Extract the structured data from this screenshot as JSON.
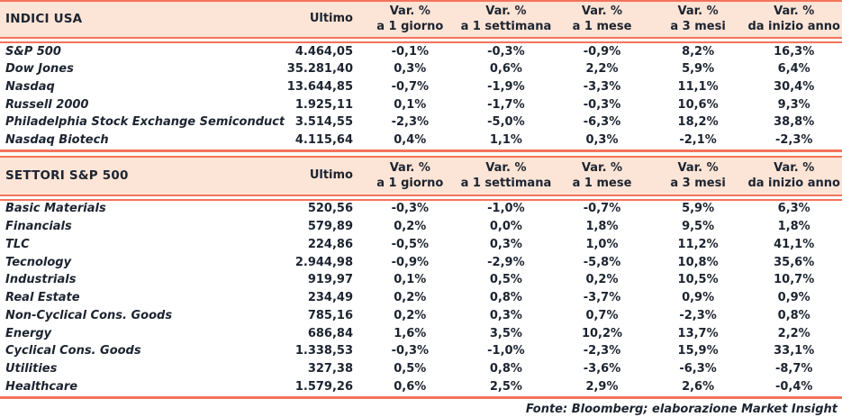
{
  "colors": {
    "header_bg": "#FCE4D6",
    "accent_line": "#F4735C",
    "text": "#1C2430"
  },
  "header": {
    "ultimo": "Ultimo",
    "var_label": "Var. %",
    "periods": [
      "a 1 giorno",
      "a 1 settimana",
      "a 1 mese",
      "a 3 mesi",
      "da inizio anno"
    ]
  },
  "chart_data": [
    {
      "type": "table",
      "title": "INDICI USA",
      "columns": [
        "INDICI USA",
        "Ultimo",
        "Var. % a 1 giorno",
        "Var. % a 1 settimana",
        "Var. % a 1 mese",
        "Var. % a 3 mesi",
        "Var. % da inizio anno"
      ],
      "rows": [
        {
          "label": "S&P 500",
          "ultimo": "4.464,05",
          "vars": [
            "-0,1%",
            "-0,3%",
            "-0,9%",
            "8,2%",
            "16,3%"
          ]
        },
        {
          "label": "Dow Jones",
          "ultimo": "35.281,40",
          "vars": [
            "0,3%",
            "0,6%",
            "2,2%",
            "5,9%",
            "6,4%"
          ]
        },
        {
          "label": "Nasdaq",
          "ultimo": "13.644,85",
          "vars": [
            "-0,7%",
            "-1,9%",
            "-3,3%",
            "11,1%",
            "30,4%"
          ]
        },
        {
          "label": "Russell 2000",
          "ultimo": "1.925,11",
          "vars": [
            "0,1%",
            "-1,7%",
            "-0,3%",
            "10,6%",
            "9,3%"
          ]
        },
        {
          "label": "Philadelphia Stock Exchange Semiconductor",
          "ultimo": "3.514,55",
          "vars": [
            "-2,3%",
            "-5,0%",
            "-6,3%",
            "18,2%",
            "38,8%"
          ]
        },
        {
          "label": "Nasdaq Biotech",
          "ultimo": "4.115,64",
          "vars": [
            "0,4%",
            "1,1%",
            "0,3%",
            "-2,1%",
            "-2,3%"
          ]
        }
      ]
    },
    {
      "type": "table",
      "title": "SETTORI S&P 500",
      "columns": [
        "SETTORI S&P 500",
        "Ultimo",
        "Var. % a 1 giorno",
        "Var. % a 1 settimana",
        "Var. % a 1 mese",
        "Var. % a 3 mesi",
        "Var. % da inizio anno"
      ],
      "rows": [
        {
          "label": "Basic Materials",
          "ultimo": "520,56",
          "vars": [
            "-0,3%",
            "-1,0%",
            "-0,7%",
            "5,9%",
            "6,3%"
          ]
        },
        {
          "label": "Financials",
          "ultimo": "579,89",
          "vars": [
            "0,2%",
            "0,0%",
            "1,8%",
            "9,5%",
            "1,8%"
          ]
        },
        {
          "label": "TLC",
          "ultimo": "224,86",
          "vars": [
            "-0,5%",
            "0,3%",
            "1,0%",
            "11,2%",
            "41,1%"
          ]
        },
        {
          "label": "Tecnology",
          "ultimo": "2.944,98",
          "vars": [
            "-0,9%",
            "-2,9%",
            "-5,8%",
            "10,8%",
            "35,6%"
          ]
        },
        {
          "label": "Industrials",
          "ultimo": "919,97",
          "vars": [
            "0,1%",
            "0,5%",
            "0,2%",
            "10,5%",
            "10,7%"
          ]
        },
        {
          "label": "Real Estate",
          "ultimo": "234,49",
          "vars": [
            "0,2%",
            "0,8%",
            "-3,7%",
            "0,9%",
            "0,9%"
          ]
        },
        {
          "label": "Non-Cyclical Cons. Goods",
          "ultimo": "785,16",
          "vars": [
            "0,2%",
            "0,3%",
            "0,7%",
            "-2,3%",
            "0,8%"
          ]
        },
        {
          "label": "Energy",
          "ultimo": "686,84",
          "vars": [
            "1,6%",
            "3,5%",
            "10,2%",
            "13,7%",
            "2,2%"
          ]
        },
        {
          "label": "Cyclical Cons. Goods",
          "ultimo": "1.338,53",
          "vars": [
            "-0,3%",
            "-1,0%",
            "-2,3%",
            "15,9%",
            "33,1%"
          ]
        },
        {
          "label": "Utilities",
          "ultimo": "327,38",
          "vars": [
            "0,5%",
            "0,8%",
            "-3,6%",
            "-6,3%",
            "-8,7%"
          ]
        },
        {
          "label": "Healthcare",
          "ultimo": "1.579,26",
          "vars": [
            "0,6%",
            "2,5%",
            "2,9%",
            "2,6%",
            "-0,4%"
          ]
        }
      ]
    }
  ],
  "footer": "Fonte: Bloomberg; elaborazione Market Insight"
}
